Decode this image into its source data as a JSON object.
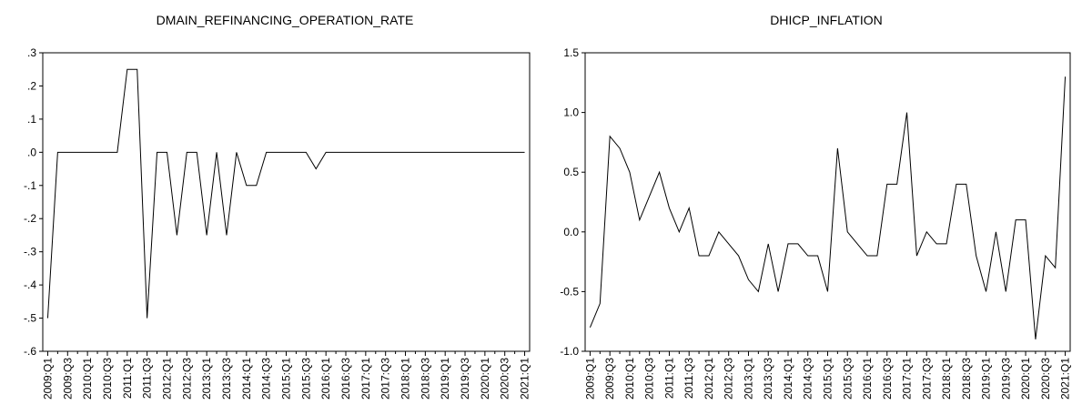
{
  "chart_data": [
    {
      "type": "line",
      "title": "DMAIN_REFINANCING_OPERATION_RATE",
      "color": "#000000",
      "grid": false,
      "categories": [
        "2009:Q1",
        null,
        "2009:Q3",
        null,
        "2010:Q1",
        null,
        "2010:Q3",
        null,
        "2011:Q1",
        null,
        "2011:Q3",
        null,
        "2012:Q1",
        null,
        "2012:Q3",
        null,
        "2013:Q1",
        null,
        "2013:Q3",
        null,
        "2014:Q1",
        null,
        "2014:Q3",
        null,
        "2015:Q1",
        null,
        "2015:Q3",
        null,
        "2016:Q1",
        null,
        "2016:Q3",
        null,
        "2017:Q1",
        null,
        "2017:Q3",
        null,
        "2018:Q1",
        null,
        "2018:Q3",
        null,
        "2019:Q1",
        null,
        "2019:Q3",
        null,
        "2020:Q1",
        null,
        "2020:Q3",
        null,
        "2021:Q1"
      ],
      "values": [
        -0.5,
        0,
        0,
        0,
        0,
        0,
        0,
        0,
        0.25,
        0.25,
        -0.5,
        0,
        0,
        -0.25,
        0,
        0,
        -0.25,
        0,
        -0.25,
        0,
        -0.1,
        -0.1,
        0,
        0,
        0,
        0,
        0,
        -0.05,
        0,
        0,
        0,
        0,
        0,
        0,
        0,
        0,
        0,
        0,
        0,
        0,
        0,
        0,
        0,
        0,
        0,
        0,
        0,
        0,
        0
      ],
      "ylim": [
        -0.6,
        0.3
      ],
      "yticks": [
        {
          "value": 0.3,
          "label": ".3"
        },
        {
          "value": 0.2,
          "label": ".2"
        },
        {
          "value": 0.1,
          "label": ".1"
        },
        {
          "value": 0,
          "label": ".0"
        },
        {
          "value": -0.1,
          "label": "-.1"
        },
        {
          "value": -0.2,
          "label": "-.2"
        },
        {
          "value": -0.3,
          "label": "-.3"
        },
        {
          "value": -0.4,
          "label": "-.4"
        },
        {
          "value": -0.5,
          "label": "-.5"
        },
        {
          "value": -0.6,
          "label": "-.6"
        }
      ]
    },
    {
      "type": "line",
      "title": "DHICP_INFLATION",
      "color": "#000000",
      "grid": false,
      "categories": [
        "2009:Q1",
        null,
        "2009:Q3",
        null,
        "2010:Q1",
        null,
        "2010:Q3",
        null,
        "2011:Q1",
        null,
        "2011:Q3",
        null,
        "2012:Q1",
        null,
        "2012:Q3",
        null,
        "2013:Q1",
        null,
        "2013:Q3",
        null,
        "2014:Q1",
        null,
        "2014:Q3",
        null,
        "2015:Q1",
        null,
        "2015:Q3",
        null,
        "2016:Q1",
        null,
        "2016:Q3",
        null,
        "2017:Q1",
        null,
        "2017:Q3",
        null,
        "2018:Q1",
        null,
        "2018:Q3",
        null,
        "2019:Q1",
        null,
        "2019:Q3",
        null,
        "2020:Q1",
        null,
        "2020:Q3",
        null,
        "2021:Q1"
      ],
      "values": [
        -0.8,
        -0.6,
        0.8,
        0.7,
        0.5,
        0.1,
        0.3,
        0.5,
        0.2,
        0.0,
        0.2,
        -0.2,
        -0.2,
        0.0,
        -0.1,
        -0.2,
        -0.4,
        -0.5,
        -0.1,
        -0.5,
        -0.1,
        -0.1,
        -0.2,
        -0.2,
        -0.5,
        0.7,
        0.0,
        -0.1,
        -0.2,
        -0.2,
        0.4,
        0.4,
        1.0,
        -0.2,
        0.0,
        -0.1,
        -0.1,
        0.4,
        0.4,
        -0.2,
        -0.5,
        0.0,
        -0.5,
        0.1,
        0.1,
        -0.9,
        -0.2,
        -0.3,
        1.3
      ],
      "ylim": [
        -1.0,
        1.5
      ],
      "yticks": [
        1.5,
        {
          "value": 1.0,
          "label": "1.0"
        },
        0.5,
        {
          "value": 0,
          "label": "0.0"
        },
        -0.5,
        {
          "value": -1.0,
          "label": "-1.0"
        }
      ]
    }
  ]
}
